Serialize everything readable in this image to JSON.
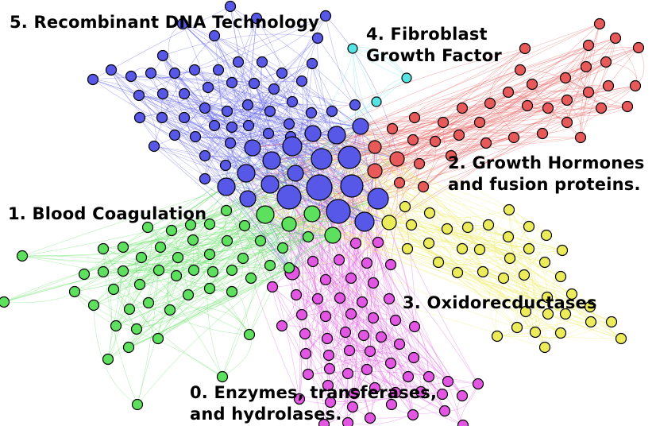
{
  "clusters": [
    {
      "id": 0,
      "name": "0. Enzymes, transferases,",
      "name2": "and hydrolases.",
      "color": "#e356e3"
    },
    {
      "id": 1,
      "name": "1. Blood Coagulation",
      "color": "#5de05d"
    },
    {
      "id": 2,
      "name": "2. Growth Hormones",
      "name2": "and fusion proteins.",
      "color": "#e85a5a"
    },
    {
      "id": 3,
      "name": "3. Oxidorecductases",
      "color": "#ecec5a"
    },
    {
      "id": 4,
      "name": "4. Fibroblast",
      "name2": "Growth Factor",
      "color": "#55e4e4"
    },
    {
      "id": 5,
      "name": "5. Recombinant DNA Technology",
      "color": "#5858e8"
    }
  ]
}
